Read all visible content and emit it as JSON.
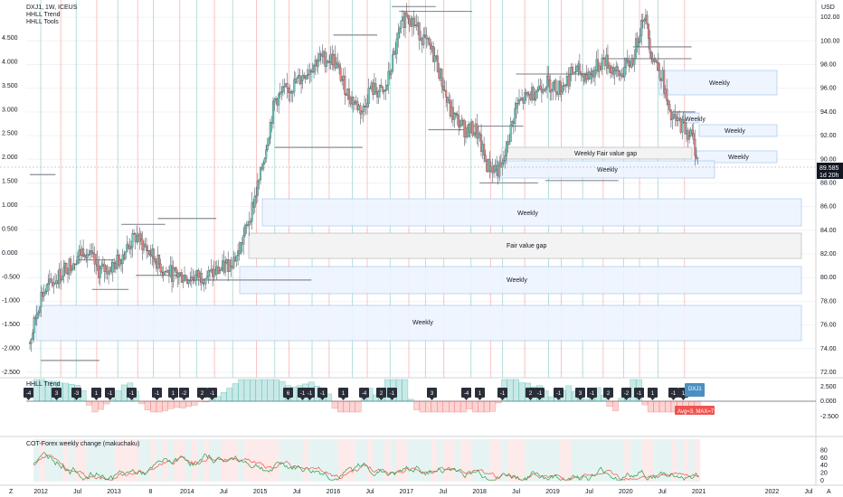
{
  "header": {
    "title": "DXJ1, 1W, ICEUS",
    "indicators": [
      "HHLL Trend",
      "HHLL Tools"
    ]
  },
  "price_axis": {
    "unit": "USD",
    "left_ticks": [
      "4.500",
      "4.000",
      "3.500",
      "3.000",
      "2.500",
      "2.000",
      "1.500",
      "1.000",
      "0.500",
      "0.000",
      "-0.500",
      "-1.000",
      "-1.500",
      "-2.000",
      "-2.500"
    ],
    "right_ticks": [
      "102.00",
      "100.00",
      "98.00",
      "96.00",
      "94.00",
      "92.00",
      "90.00",
      "88.00",
      "86.00",
      "84.00",
      "82.00",
      "80.00",
      "78.00",
      "76.00",
      "74.00",
      "72.00"
    ],
    "last_price": "89.585",
    "countdown": "1d 20h"
  },
  "time_axis": {
    "ticks": [
      "2012",
      "Jul",
      "2013",
      "8",
      "2014",
      "Jul",
      "2015",
      "Jul",
      "2016",
      "Jul",
      "2017",
      "Jul",
      "2018",
      "Jul",
      "2019",
      "Jul",
      "2020",
      "Jul",
      "2021",
      "2022",
      "Jul"
    ],
    "corner_left": "Z",
    "corner_right": "A"
  },
  "zones": [
    {
      "label": "Weekly",
      "type": "weekly"
    },
    {
      "label": "Weekly",
      "type": "weekly"
    },
    {
      "label": "Weekly",
      "type": "weekly"
    },
    {
      "label": "Weekly Fair value gap",
      "type": "fvg"
    },
    {
      "label": "Weekly",
      "type": "weekly"
    },
    {
      "label": "Weekly",
      "type": "weekly"
    },
    {
      "label": "Weekly",
      "type": "weekly"
    },
    {
      "label": "Fair value gap",
      "type": "fvg"
    },
    {
      "label": "Weekly",
      "type": "weekly"
    },
    {
      "label": "Weekly",
      "type": "weekly"
    }
  ],
  "trend_panel": {
    "title": "HHLL Trend",
    "right_ticks": [
      "2.500",
      "0.000",
      "-2.500"
    ],
    "badges": [
      "-4",
      "3",
      "-3",
      "1",
      "-1",
      "-1",
      "-1",
      "1",
      "-2",
      "2",
      "-1",
      "6",
      "-1",
      "-1",
      "-1",
      "1",
      "-4",
      "2",
      "-1",
      "3",
      "-4",
      "1",
      "-1",
      "2",
      "-1",
      "-1",
      "3",
      "-1",
      "2",
      "-2",
      "-1",
      "1",
      "-1",
      "1"
    ],
    "tag_symbol": "DXJ1",
    "tag_stats": "Avg=3, MAX=7"
  },
  "cot_panel": {
    "title": "COT-Forex weekly change (makuchaku)",
    "right_ticks": [
      "80",
      "60",
      "40",
      "20",
      "0"
    ]
  },
  "colors": {
    "up": "#26a69a",
    "down": "#ef5350",
    "zone_fill": "#eef5ff",
    "zone_stroke": "#9fc3e8",
    "last_price_bg": "#131722",
    "tag_blue": "#4a90c2",
    "tag_red": "#ef5350"
  },
  "chart_data": {
    "type": "candlestick",
    "title": "DXJ1, 1W, ICEUS",
    "y_range_right": [
      72,
      103
    ],
    "y_range_left": [
      -2.5,
      4.7
    ],
    "x_range": [
      2011.8,
      2022.6
    ],
    "price_path": [
      [
        2011.85,
        74.5
      ],
      [
        2012.0,
        78.5
      ],
      [
        2012.3,
        80.5
      ],
      [
        2012.6,
        82.5
      ],
      [
        2012.8,
        80.5
      ],
      [
        2013.0,
        81.0
      ],
      [
        2013.3,
        83.5
      ],
      [
        2013.5,
        82.0
      ],
      [
        2013.7,
        80.5
      ],
      [
        2014.0,
        80.0
      ],
      [
        2014.3,
        80.2
      ],
      [
        2014.5,
        80.8
      ],
      [
        2014.7,
        82.0
      ],
      [
        2014.85,
        85.0
      ],
      [
        2015.0,
        88.5
      ],
      [
        2015.2,
        95.0
      ],
      [
        2015.5,
        96.5
      ],
      [
        2015.8,
        98.5
      ],
      [
        2016.0,
        98.5
      ],
      [
        2016.2,
        95.5
      ],
      [
        2016.4,
        94.0
      ],
      [
        2016.5,
        96.0
      ],
      [
        2016.7,
        95.5
      ],
      [
        2016.9,
        100.5
      ],
      [
        2017.0,
        102.5
      ],
      [
        2017.2,
        100.5
      ],
      [
        2017.4,
        98.5
      ],
      [
        2017.6,
        94.0
      ],
      [
        2017.8,
        92.5
      ],
      [
        2017.95,
        92.5
      ],
      [
        2018.1,
        89.5
      ],
      [
        2018.3,
        89.0
      ],
      [
        2018.5,
        94.5
      ],
      [
        2018.7,
        95.5
      ],
      [
        2018.9,
        96.5
      ],
      [
        2019.1,
        96.0
      ],
      [
        2019.3,
        97.5
      ],
      [
        2019.5,
        97.0
      ],
      [
        2019.7,
        98.5
      ],
      [
        2019.9,
        97.0
      ],
      [
        2020.1,
        98.5
      ],
      [
        2020.25,
        102.5
      ],
      [
        2020.35,
        99.0
      ],
      [
        2020.5,
        97.0
      ],
      [
        2020.6,
        93.5
      ],
      [
        2020.75,
        93.0
      ],
      [
        2020.9,
        92.0
      ],
      [
        2021.0,
        89.6
      ]
    ],
    "cot_range": [
      0,
      100
    ]
  }
}
